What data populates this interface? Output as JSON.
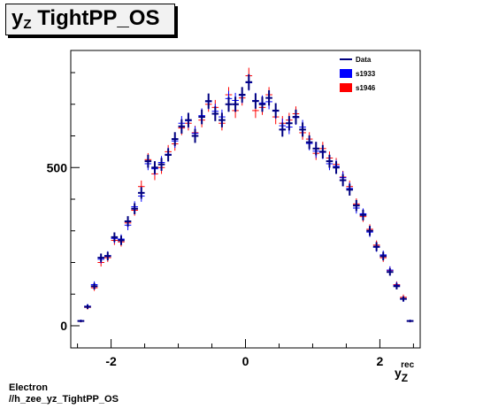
{
  "title": {
    "main": "y",
    "sub": "Z",
    "rest": " TightPP_OS"
  },
  "footer": {
    "line1": "Electron",
    "line2": "//h_zee_yz_TightPP_OS"
  },
  "chart_data": {
    "type": "scatter",
    "title": "y_Z TightPP_OS",
    "xlabel": {
      "main": "y",
      "sub": "Z",
      "sup": "rec"
    },
    "ylabel": "",
    "xlim": [
      -2.6,
      2.6
    ],
    "ylim": [
      -70,
      870
    ],
    "x_ticks": [
      {
        "value": -2,
        "label": "-2"
      },
      {
        "value": 0,
        "label": "0"
      },
      {
        "value": 2,
        "label": "2"
      }
    ],
    "y_ticks": [
      {
        "value": 0,
        "label": "0"
      },
      {
        "value": 500,
        "label": "500"
      }
    ],
    "bin_width": 0.1,
    "x": [
      -2.45,
      -2.35,
      -2.25,
      -2.15,
      -2.05,
      -1.95,
      -1.85,
      -1.75,
      -1.65,
      -1.55,
      -1.45,
      -1.35,
      -1.25,
      -1.15,
      -1.05,
      -0.95,
      -0.85,
      -0.75,
      -0.65,
      -0.55,
      -0.45,
      -0.35,
      -0.25,
      -0.15,
      -0.05,
      0.05,
      0.15,
      0.25,
      0.35,
      0.45,
      0.55,
      0.65,
      0.75,
      0.85,
      0.95,
      1.05,
      1.15,
      1.25,
      1.35,
      1.45,
      1.55,
      1.65,
      1.75,
      1.85,
      1.95,
      2.05,
      2.15,
      2.25,
      2.35,
      2.45
    ],
    "series": [
      {
        "name": "Data",
        "color": "#000080",
        "values": [
          15,
          60,
          125,
          215,
          220,
          280,
          270,
          330,
          370,
          420,
          520,
          500,
          510,
          540,
          590,
          630,
          650,
          600,
          660,
          710,
          670,
          650,
          700,
          700,
          730,
          770,
          710,
          700,
          720,
          680,
          620,
          640,
          660,
          620,
          580,
          560,
          550,
          520,
          500,
          460,
          430,
          380,
          350,
          300,
          250,
          220,
          170,
          125,
          85,
          15
        ]
      },
      {
        "name": "s1933",
        "color": "#0000ff",
        "values": [
          16,
          62,
          130,
          210,
          222,
          276,
          274,
          318,
          376,
          410,
          512,
          496,
          516,
          542,
          584,
          640,
          648,
          608,
          664,
          708,
          678,
          660,
          718,
          712,
          728,
          768,
          712,
          704,
          708,
          678,
          632,
          628,
          658,
          628,
          576,
          552,
          548,
          512,
          504,
          468,
          434,
          372,
          354,
          296,
          248,
          224,
          176,
          128,
          84,
          16
        ]
      },
      {
        "name": "s1946",
        "color": "#ff0000",
        "values": [
          14,
          58,
          120,
          200,
          215,
          270,
          265,
          325,
          365,
          440,
          525,
          480,
          500,
          550,
          575,
          625,
          640,
          610,
          650,
          700,
          690,
          640,
          730,
          680,
          720,
          790,
          680,
          690,
          730,
          660,
          640,
          650,
          670,
          610,
          590,
          545,
          560,
          530,
          510,
          470,
          440,
          385,
          345,
          305,
          255,
          215,
          175,
          130,
          90,
          14
        ]
      }
    ],
    "legend": {
      "position": "top-right",
      "entries": [
        {
          "label": "Data",
          "symbol": "line",
          "color": "#000080"
        },
        {
          "label": "s1933",
          "symbol": "box",
          "color": "#0000ff"
        },
        {
          "label": "s1946",
          "symbol": "box",
          "color": "#ff0000"
        }
      ]
    },
    "grid": false
  }
}
